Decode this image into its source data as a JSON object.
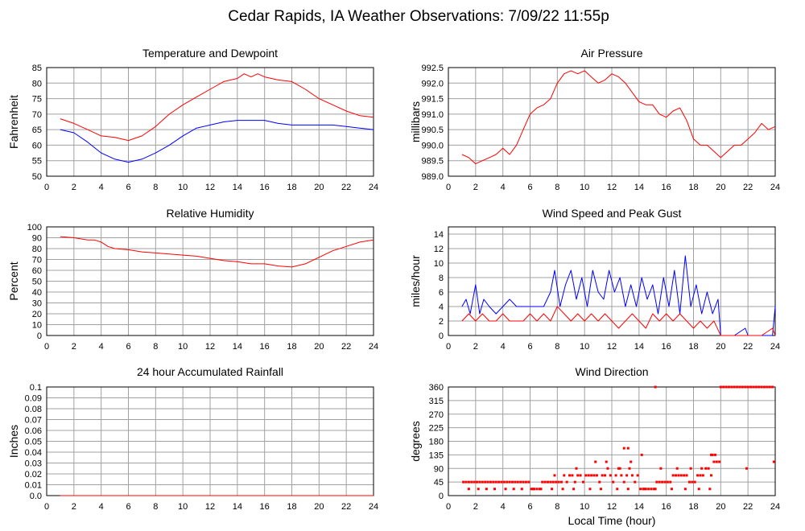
{
  "page_title": "Cedar Rapids, IA Weather Observations: 7/09/22 11:55p",
  "colors": {
    "red": "#ff0000",
    "blue": "#0000ff",
    "grid": "#a0a0a0"
  },
  "chart_data": [
    {
      "id": "temp",
      "type": "line",
      "title": "Temperature and Dewpoint",
      "xlabel": "",
      "ylabel": "Fahrenheit",
      "xlim": [
        0,
        24
      ],
      "ylim": [
        50,
        85
      ],
      "xticks": [
        0,
        2,
        4,
        6,
        8,
        10,
        12,
        14,
        16,
        18,
        20,
        22,
        24
      ],
      "yticks": [
        50,
        55,
        60,
        65,
        70,
        75,
        80,
        85
      ],
      "grid": true,
      "series": [
        {
          "color": "#ff0000",
          "x": [
            1,
            2,
            3,
            4,
            5,
            6,
            7,
            8,
            9,
            10,
            11,
            12,
            13,
            14,
            14.5,
            15,
            15.5,
            16,
            17,
            18,
            19,
            20,
            21,
            22,
            23,
            24
          ],
          "y": [
            68.5,
            67,
            65,
            63,
            62.5,
            61.5,
            63,
            66,
            70,
            73,
            75.5,
            78,
            80.5,
            81.5,
            83,
            82,
            83,
            82,
            81,
            80.5,
            78,
            75,
            73,
            71,
            69.5,
            69
          ]
        },
        {
          "color": "#0000ff",
          "x": [
            1,
            2,
            3,
            4,
            5,
            6,
            7,
            8,
            9,
            10,
            11,
            12,
            13,
            14,
            15,
            16,
            17,
            18,
            19,
            20,
            21,
            22,
            23,
            24
          ],
          "y": [
            65,
            64,
            61,
            57.5,
            55.5,
            54.5,
            55.5,
            57.5,
            60,
            63,
            65.5,
            66.5,
            67.5,
            68,
            68,
            68,
            67,
            66.5,
            66.5,
            66.5,
            66.5,
            66,
            65.5,
            65
          ]
        }
      ]
    },
    {
      "id": "pressure",
      "type": "line",
      "title": "Air Pressure",
      "xlabel": "",
      "ylabel": "millibars",
      "xlim": [
        0,
        24
      ],
      "ylim": [
        989.0,
        992.5
      ],
      "xticks": [
        0,
        2,
        4,
        6,
        8,
        10,
        12,
        14,
        16,
        18,
        20,
        22,
        24
      ],
      "yticks": [
        "989.0",
        "989.5",
        "990.0",
        "990.5",
        "991.0",
        "991.5",
        "992.0",
        "992.5"
      ],
      "grid": true,
      "series": [
        {
          "color": "#ff0000",
          "x": [
            1,
            1.5,
            2,
            2.5,
            3,
            3.5,
            4,
            4.5,
            5,
            5.5,
            6,
            6.5,
            7,
            7.5,
            8,
            8.5,
            9,
            9.5,
            10,
            10.5,
            11,
            11.5,
            12,
            12.5,
            13,
            13.5,
            14,
            14.5,
            15,
            15.5,
            16,
            16.5,
            17,
            17.5,
            18,
            18.5,
            19,
            19.5,
            20,
            20.5,
            21,
            21.5,
            22,
            22.5,
            23,
            23.5,
            24
          ],
          "y": [
            989.7,
            989.6,
            989.4,
            989.5,
            989.6,
            989.7,
            989.9,
            989.7,
            990.0,
            990.5,
            991.0,
            991.2,
            991.3,
            991.5,
            992.0,
            992.3,
            992.4,
            992.3,
            992.4,
            992.2,
            992.0,
            992.1,
            992.3,
            992.2,
            992.0,
            991.7,
            991.4,
            991.3,
            991.3,
            991.0,
            990.9,
            991.1,
            991.2,
            990.8,
            990.2,
            990.0,
            990.0,
            989.8,
            989.6,
            989.8,
            990.0,
            990.0,
            990.2,
            990.4,
            990.7,
            990.5,
            990.6
          ]
        }
      ]
    },
    {
      "id": "humidity",
      "type": "line",
      "title": "Relative Humidity",
      "xlabel": "",
      "ylabel": "Percent",
      "xlim": [
        0,
        24
      ],
      "ylim": [
        0,
        100
      ],
      "xticks": [
        0,
        2,
        4,
        6,
        8,
        10,
        12,
        14,
        16,
        18,
        20,
        22,
        24
      ],
      "yticks": [
        0,
        10,
        20,
        30,
        40,
        50,
        60,
        70,
        80,
        90,
        100
      ],
      "grid": true,
      "series": [
        {
          "color": "#ff0000",
          "x": [
            1,
            2,
            3,
            3.5,
            4,
            4.5,
            5,
            6,
            7,
            8,
            9,
            10,
            11,
            12,
            13,
            14,
            15,
            16,
            17,
            18,
            19,
            20,
            21,
            22,
            23,
            24
          ],
          "y": [
            91,
            90,
            88,
            88,
            86,
            82,
            80,
            79,
            77,
            76,
            75,
            74,
            73,
            71,
            69,
            68,
            66,
            66,
            64,
            63,
            66,
            72,
            78,
            82,
            86,
            88
          ]
        }
      ]
    },
    {
      "id": "wind",
      "type": "line",
      "title": "Wind Speed and Peak Gust",
      "xlabel": "",
      "ylabel": "miles/hour",
      "xlim": [
        0,
        24
      ],
      "ylim": [
        0,
        15
      ],
      "xticks": [
        0,
        2,
        4,
        6,
        8,
        10,
        12,
        14,
        16,
        18,
        20,
        22,
        24
      ],
      "yticks": [
        0,
        2,
        4,
        6,
        8,
        10,
        12,
        14
      ],
      "grid": true,
      "series": [
        {
          "color": "#0000ff",
          "x": [
            1,
            1.3,
            1.6,
            2,
            2.3,
            2.6,
            3,
            3.5,
            4,
            4.5,
            5,
            5.5,
            6,
            6.5,
            7,
            7.5,
            7.8,
            8.2,
            8.6,
            9,
            9.4,
            9.8,
            10.2,
            10.6,
            11,
            11.4,
            11.8,
            12.2,
            12.6,
            13,
            13.4,
            13.8,
            14.2,
            14.6,
            15,
            15.4,
            15.8,
            16.2,
            16.6,
            17,
            17.4,
            17.8,
            18.2,
            18.6,
            19,
            19.4,
            19.8,
            20,
            21,
            21.8,
            22,
            23,
            23.8,
            24
          ],
          "y": [
            4,
            5,
            3,
            7,
            3,
            5,
            4,
            3,
            4,
            5,
            4,
            4,
            4,
            4,
            4,
            6,
            9,
            4,
            7,
            9,
            5,
            8,
            4,
            9,
            6,
            5,
            9,
            6,
            8,
            4,
            7,
            4,
            8,
            5,
            7,
            3,
            8,
            4,
            9,
            3,
            11,
            4,
            7,
            3,
            6,
            3,
            5,
            0,
            0,
            1,
            0,
            0,
            0,
            4
          ]
        },
        {
          "color": "#ff0000",
          "x": [
            1,
            1.5,
            2,
            2.5,
            3,
            3.5,
            4,
            4.5,
            5,
            5.5,
            6,
            6.5,
            7,
            7.5,
            8,
            8.5,
            9,
            9.5,
            10,
            10.5,
            11,
            11.5,
            12,
            12.5,
            13,
            13.5,
            14,
            14.5,
            15,
            15.5,
            16,
            16.5,
            17,
            17.5,
            18,
            18.5,
            19,
            19.5,
            20,
            21,
            22,
            23,
            23.8,
            24
          ],
          "y": [
            2,
            3,
            2,
            3,
            2,
            2,
            3,
            2,
            2,
            2,
            3,
            2,
            3,
            2,
            4,
            3,
            2,
            3,
            2,
            3,
            2,
            3,
            2,
            1,
            2,
            3,
            2,
            1,
            3,
            2,
            3,
            2,
            3,
            2,
            1,
            2,
            1,
            2,
            0,
            0,
            0,
            0,
            1,
            0
          ]
        }
      ]
    },
    {
      "id": "rain",
      "type": "line",
      "title": "24 hour Accumulated Rainfall",
      "xlabel": "",
      "ylabel": "Inches",
      "xlim": [
        0,
        24
      ],
      "ylim": [
        0,
        0.1
      ],
      "xticks": [
        0,
        2,
        4,
        6,
        8,
        10,
        12,
        14,
        16,
        18,
        20,
        22,
        24
      ],
      "yticks": [
        "0.0",
        "0.01",
        "0.02",
        "0.03",
        "0.04",
        "0.05",
        "0.06",
        "0.07",
        "0.08",
        "0.09",
        "0.1"
      ],
      "grid": true,
      "series": [
        {
          "color": "#ff0000",
          "x": [
            1,
            24
          ],
          "y": [
            0,
            0
          ]
        }
      ]
    },
    {
      "id": "direction",
      "type": "scatter",
      "title": "Wind Direction",
      "xlabel": "Local Time (hour)",
      "ylabel": "degrees",
      "xlim": [
        0,
        24
      ],
      "ylim": [
        0,
        360
      ],
      "xticks": [
        0,
        2,
        4,
        6,
        8,
        10,
        12,
        14,
        16,
        18,
        20,
        22,
        24
      ],
      "yticks": [
        0,
        45,
        90,
        135,
        180,
        225,
        270,
        315,
        360
      ],
      "grid": true,
      "series": [
        {
          "color": "#ff0000",
          "x": [
            1.1,
            1.3,
            1.5,
            1.7,
            1.9,
            2.1,
            2.3,
            2.5,
            2.7,
            2.9,
            3.1,
            3.3,
            3.5,
            3.7,
            3.9,
            4.1,
            4.3,
            4.5,
            4.7,
            4.9,
            5.1,
            5.3,
            5.5,
            5.7,
            5.9,
            6.1,
            6.3,
            6.5,
            6.7,
            6.9,
            7.1,
            7.3,
            7.5,
            7.7,
            7.9,
            8.1,
            8.3,
            8.5,
            8.7,
            8.9,
            9.1,
            9.3,
            9.5,
            9.7,
            9.9,
            10.1,
            10.3,
            10.5,
            10.7,
            10.9,
            11.1,
            11.3,
            11.5,
            11.7,
            11.9,
            12.1,
            12.3,
            12.5,
            12.7,
            12.9,
            13.1,
            13.3,
            13.5,
            13.7,
            13.9,
            14.1,
            14.3,
            14.5,
            14.7,
            14.9,
            15.1,
            15.3,
            15.5,
            15.7,
            15.9,
            16.1,
            16.3,
            16.5,
            16.7,
            16.9,
            17.1,
            17.3,
            17.5,
            17.7,
            17.9,
            18.1,
            18.3,
            18.5,
            18.7,
            18.9,
            19.1,
            19.3,
            19.5,
            19.7,
            19.9,
            1.5,
            2.2,
            2.8,
            3.4,
            4.2,
            4.8,
            5.4,
            6.2,
            6.8,
            7.6,
            8.4,
            9.2,
            10.4,
            11.2,
            12.4,
            13.2,
            14.4,
            15.2,
            16.4,
            17.4,
            18.4,
            19.2,
            7.8,
            9.4,
            10.8,
            11.6,
            12.6,
            13.4,
            15.6,
            16.8,
            17.8,
            18.6,
            19.4,
            12.9,
            13.2,
            14.2,
            19.3,
            19.6,
            15.2,
            21.9,
            23.9,
            20.0,
            20.2,
            20.4,
            20.6,
            20.8,
            21.0,
            21.2,
            21.4,
            21.6,
            21.8,
            22.0,
            22.2,
            22.4,
            22.6,
            22.8,
            23.0,
            23.2,
            23.4,
            23.6,
            23.8
          ],
          "y": [
            45,
            45,
            45,
            45,
            45,
            45,
            45,
            45,
            45,
            45,
            45,
            45,
            45,
            45,
            45,
            45,
            45,
            45,
            45,
            45,
            45,
            45,
            45,
            45,
            45,
            22,
            22,
            22,
            22,
            45,
            45,
            45,
            45,
            45,
            45,
            45,
            45,
            67,
            45,
            67,
            67,
            45,
            67,
            67,
            45,
            67,
            67,
            67,
            67,
            67,
            45,
            67,
            67,
            90,
            67,
            45,
            67,
            90,
            67,
            45,
            67,
            90,
            67,
            45,
            67,
            22,
            22,
            22,
            22,
            22,
            22,
            45,
            45,
            45,
            45,
            45,
            45,
            67,
            67,
            67,
            67,
            67,
            67,
            45,
            45,
            45,
            67,
            67,
            67,
            90,
            90,
            67,
            112,
            112,
            112,
            22,
            22,
            22,
            22,
            22,
            22,
            22,
            22,
            22,
            22,
            22,
            22,
            22,
            22,
            22,
            22,
            22,
            22,
            22,
            22,
            22,
            22,
            67,
            90,
            112,
            112,
            90,
            112,
            90,
            90,
            90,
            90,
            135,
            157,
            157,
            135,
            135,
            135,
            360,
            90,
            112,
            360,
            360,
            360,
            360,
            360,
            360,
            360,
            360,
            360,
            360,
            360,
            360,
            360,
            360,
            360,
            360,
            360,
            360,
            360,
            360
          ]
        }
      ]
    }
  ]
}
